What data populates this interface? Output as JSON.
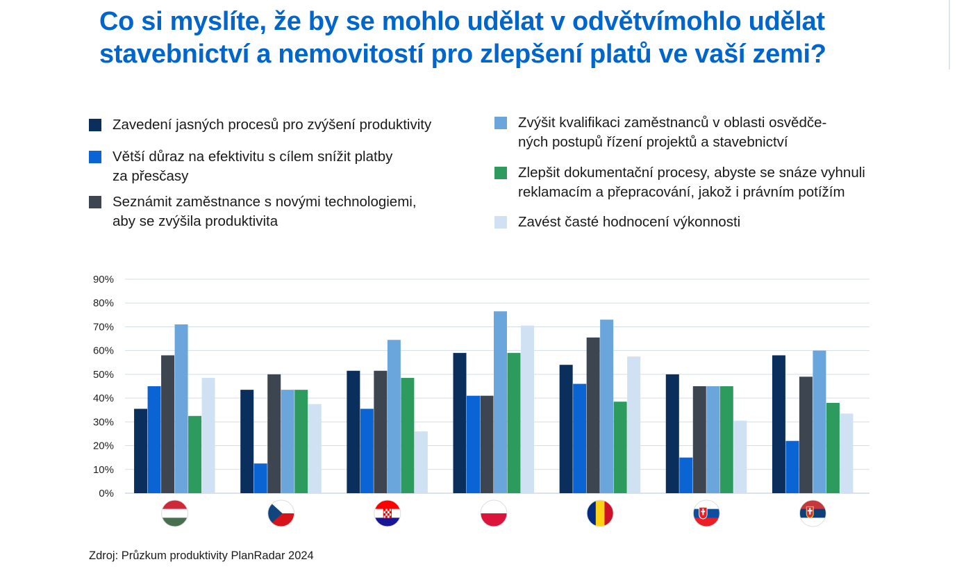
{
  "title_lines": [
    "Co si myslíte, že by se mohlo udělat v odvětvímohlo udělat",
    "stavebnictví a nemovitostí pro zlepšení platů ve vaší zemi?"
  ],
  "legend": [
    {
      "lines": [
        "Zavedení jasných procesů pro zvýšení produktivity"
      ],
      "color": "#0a2f5c"
    },
    {
      "lines": [
        "Větší důraz na efektivitu s cílem snížit platby",
        "za přesčasy"
      ],
      "color": "#0a64d4"
    },
    {
      "lines": [
        "Seznámit zaměstnance s novými technologiemi,",
        "aby se zvýšila produktivita"
      ],
      "color": "#3c4550"
    },
    {
      "lines": [
        "Zvýšit kvalifikaci zaměstnanců v oblasti osvědče-",
        "ných postupů řízení projektů a stavebnictví"
      ],
      "color": "#6aa5dc"
    },
    {
      "lines": [
        "Zlepšit dokumentační procesy, abyste se snáze vyhnuli",
        "reklamacím a přepracování, jakož i právním potížím"
      ],
      "color": "#2e9b5e"
    },
    {
      "lines": [
        "Zavést časté hodnocení výkonnosti"
      ],
      "color": "#cfe1f3"
    }
  ],
  "chart_data": {
    "type": "bar",
    "categories": [
      "Hungary",
      "Czech Republic",
      "Croatia",
      "Poland",
      "Romania",
      "Slovakia",
      "Serbia"
    ],
    "flag_icons": [
      "flag-hungary-icon",
      "flag-czech-icon",
      "flag-croatia-icon",
      "flag-poland-icon",
      "flag-romania-icon",
      "flag-slovakia-icon",
      "flag-serbia-icon"
    ],
    "series": [
      {
        "name": "Zavedení jasných procesů pro zvýšení produktivity",
        "color": "#0a2f5c",
        "values": [
          35.5,
          43.5,
          51.5,
          59,
          54,
          50,
          58
        ]
      },
      {
        "name": "Větší důraz na efektivitu s cílem snížit platby za přesčasy",
        "color": "#0a64d4",
        "values": [
          45,
          12.5,
          35.5,
          41,
          46,
          15,
          22
        ]
      },
      {
        "name": "Seznámit zaměstnance s novými technologiemi, aby se zvýšila produktivita",
        "color": "#3c4550",
        "values": [
          58,
          50,
          51.5,
          41,
          65.5,
          45,
          49
        ]
      },
      {
        "name": "Zvýšit kvalifikaci zaměstnanců v oblasti osvědčených postupů řízení projektů a stavebnictví",
        "color": "#6aa5dc",
        "values": [
          71,
          43.5,
          64.5,
          76.5,
          73,
          45,
          60
        ]
      },
      {
        "name": "Zlepšit dokumentační procesy, abyste se snáze vyhnuli reklamacím a přepracování, jakož i právním potížím",
        "color": "#2e9b5e",
        "values": [
          32.5,
          43.5,
          48.5,
          59,
          38.5,
          45,
          38
        ]
      },
      {
        "name": "Zavést časté hodnocení výkonnosti",
        "color": "#cfe1f3",
        "values": [
          48.5,
          37.5,
          26,
          70.5,
          57.5,
          30.5,
          33.5
        ]
      }
    ],
    "yticks": [
      "0%",
      "10%",
      "20%",
      "30%",
      "40%",
      "50%",
      "60%",
      "70%",
      "80%",
      "90%"
    ],
    "ylim": [
      0,
      90
    ],
    "grid": true,
    "legend_position": "top"
  },
  "source": "Zdroj: Průzkum produktivity PlanRadar 2024"
}
